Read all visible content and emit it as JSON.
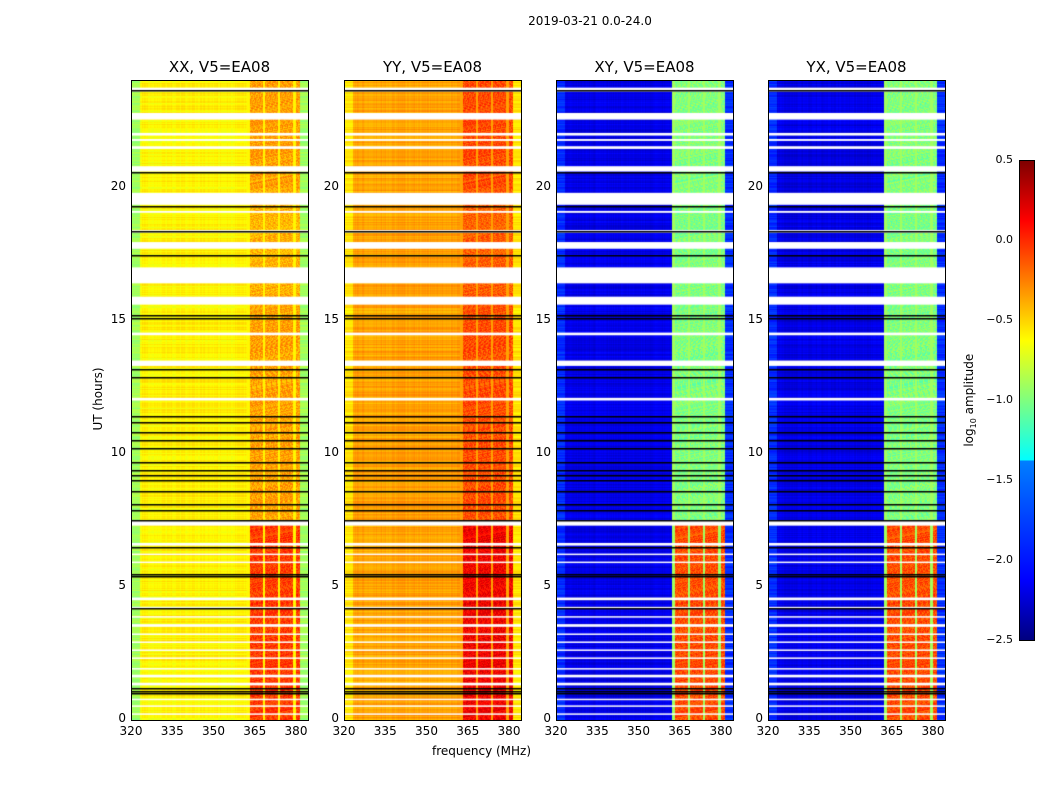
{
  "figure_title": "2019-03-21 0.0-24.0",
  "chart_data": {
    "type": "heatmap",
    "title": "2019-03-21 0.0-24.0",
    "xlabel": "frequency (MHz)",
    "ylabel": "UT (hours)",
    "xlim": [
      320,
      384
    ],
    "ylim": [
      0,
      24
    ],
    "xticks": [
      320,
      335,
      350,
      365,
      380
    ],
    "yticks": [
      0,
      5,
      10,
      15,
      20
    ],
    "colorbar": {
      "label": "log10 amplitude",
      "label_main": "log",
      "label_sub": "10",
      "label_rest": " amplitude",
      "range": [
        -2.5,
        0.5
      ],
      "ticks": [
        "0.5",
        "0.0",
        "−0.5",
        "−1.0",
        "−1.5",
        "−2.0",
        "−2.5"
      ],
      "colormap": "jet"
    },
    "flagged_hours": [
      [
        23.6,
        23.75
      ],
      [
        22.55,
        22.8
      ],
      [
        21.95,
        22.05
      ],
      [
        21.75,
        21.82
      ],
      [
        21.45,
        21.55
      ],
      [
        20.6,
        20.8
      ],
      [
        19.35,
        19.8
      ],
      [
        19.05,
        19.12
      ],
      [
        18.3,
        18.4
      ],
      [
        17.7,
        17.95
      ],
      [
        16.4,
        17.0
      ],
      [
        15.6,
        15.9
      ],
      [
        14.45,
        14.55
      ],
      [
        13.3,
        13.5
      ],
      [
        12.0,
        12.1
      ],
      [
        7.3,
        7.5
      ],
      [
        6.55,
        6.65
      ],
      [
        6.2,
        6.25
      ],
      [
        5.9,
        5.95
      ],
      [
        4.5,
        4.6
      ],
      [
        4.2,
        4.25
      ],
      [
        3.85,
        3.9
      ],
      [
        3.5,
        3.6
      ],
      [
        3.2,
        3.25
      ],
      [
        2.9,
        2.95
      ],
      [
        2.6,
        2.65
      ],
      [
        2.3,
        2.35
      ],
      [
        1.9,
        1.95
      ],
      [
        1.6,
        1.7
      ],
      [
        1.3,
        1.4
      ],
      [
        0.75,
        0.8
      ],
      [
        0.5,
        0.55
      ],
      [
        0.2,
        0.25
      ]
    ],
    "scan_boundaries_hours": [
      23.67,
      20.6,
      19.3,
      18.35,
      17.45,
      15.2,
      15.1,
      13.2,
      12.9,
      11.4,
      11.2,
      10.8,
      10.5,
      10.2,
      9.7,
      9.4,
      9.2,
      9.0,
      8.6,
      8.1,
      7.9,
      7.5,
      6.5,
      5.5,
      5.4,
      4.2,
      1.2,
      1.1,
      1.0
    ],
    "rfi_band_mhz": [
      362,
      381
    ],
    "panels": [
      {
        "title": "XX, V5=EA08",
        "base_level": -0.6,
        "edge_level": -0.9,
        "rfi_level_low_ut": -0.05,
        "rfi_level_high_ut": -0.35
      },
      {
        "title": "YY, V5=EA08",
        "base_level": -0.35,
        "edge_level": -0.55,
        "rfi_level_low_ut": 0.15,
        "rfi_level_high_ut": -0.1
      },
      {
        "title": "XY, V5=EA08",
        "base_level": -2.2,
        "edge_level": -2.0,
        "rfi_level_low_ut": -0.1,
        "rfi_level_high_ut": -1.0
      },
      {
        "title": "YX, V5=EA08",
        "base_level": -2.2,
        "edge_level": -2.0,
        "rfi_level_low_ut": -0.1,
        "rfi_level_high_ut": -1.0
      }
    ]
  }
}
